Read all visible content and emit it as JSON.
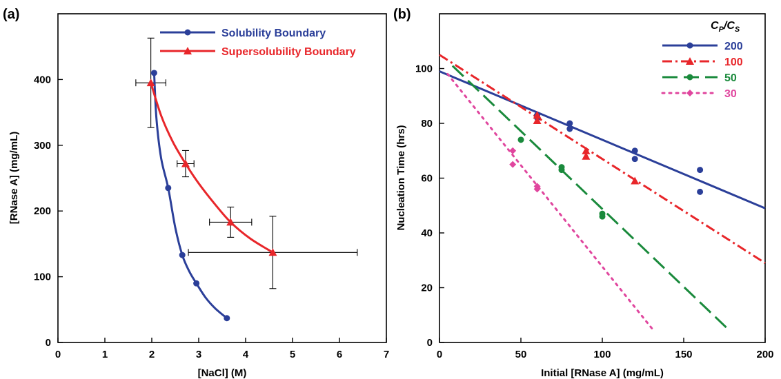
{
  "chart_data": [
    {
      "type": "scatter",
      "panel_label": "(a)",
      "xlabel": "[NaCl] (M)",
      "ylabel": "[RNase A] (mg/mL)",
      "xlim": [
        0,
        7
      ],
      "ylim": [
        0,
        500
      ],
      "xticks": [
        "0",
        "1",
        "2",
        "3",
        "4",
        "5",
        "6",
        "7"
      ],
      "yticks": [
        "0",
        "100",
        "200",
        "300",
        "400"
      ],
      "legend_position": "top-right",
      "series": [
        {
          "name": "Solubility Boundary",
          "color": "#2b3f99",
          "marker": "circle",
          "x": [
            2.05,
            2.35,
            2.65,
            2.95,
            3.6
          ],
          "y": [
            410,
            235,
            133,
            90,
            37
          ],
          "curve_x": [
            2.05,
            2.1,
            2.2,
            2.35,
            2.5,
            2.65,
            2.8,
            2.95,
            3.15,
            3.35,
            3.6
          ],
          "curve_y": [
            410,
            340,
            280,
            235,
            175,
            133,
            108,
            90,
            68,
            52,
            37
          ]
        },
        {
          "name": "Supersolubility Boundary",
          "color": "#e8262a",
          "marker": "triangle",
          "x": [
            1.98,
            2.72,
            3.68,
            4.58
          ],
          "y": [
            395,
            272,
            183,
            137
          ],
          "x_err": [
            0.32,
            0.18,
            0.45,
            1.8
          ],
          "y_err": [
            68,
            20,
            23,
            55
          ],
          "curve_x": [
            1.98,
            2.2,
            2.45,
            2.72,
            3.0,
            3.35,
            3.68,
            4.1,
            4.58
          ],
          "curve_y": [
            395,
            345,
            305,
            272,
            242,
            210,
            183,
            158,
            137
          ]
        }
      ]
    },
    {
      "type": "scatter",
      "panel_label": "(b)",
      "xlabel": "Initial [RNase A] (mg/mL)",
      "ylabel": "Nucleation Time (hrs)",
      "xlim": [
        0,
        200
      ],
      "ylim": [
        0,
        120
      ],
      "xticks": [
        "0",
        "50",
        "100",
        "150",
        "200"
      ],
      "yticks": [
        "0",
        "20",
        "40",
        "60",
        "80",
        "100"
      ],
      "legend_title": "C_P/C_S",
      "legend_title_main": "C",
      "legend_title_sub1": "P",
      "legend_title_sep": "/C",
      "legend_title_sub2": "S",
      "legend_position": "top-right",
      "series": [
        {
          "name": "200",
          "color": "#2b3f99",
          "marker": "circle",
          "line_style": "solid",
          "fit_x": [
            0,
            200
          ],
          "fit_y": [
            99,
            49
          ],
          "x": [
            60,
            60,
            80,
            80,
            120,
            120,
            160,
            160
          ],
          "y": [
            82,
            83,
            78,
            80,
            67,
            70,
            55,
            63
          ]
        },
        {
          "name": "100",
          "color": "#e8262a",
          "marker": "triangle",
          "line_style": "dashdot",
          "fit_x": [
            0,
            200
          ],
          "fit_y": [
            105,
            29
          ],
          "x": [
            60,
            60,
            90,
            90,
            120
          ],
          "y": [
            81,
            83,
            68,
            70,
            59
          ]
        },
        {
          "name": "50",
          "color": "#1a8a3c",
          "marker": "circle",
          "line_style": "longdash",
          "fit_x": [
            8,
            177
          ],
          "fit_y": [
            101,
            5
          ],
          "x": [
            50,
            75,
            75,
            100,
            100
          ],
          "y": [
            74,
            64,
            63,
            47,
            46
          ]
        },
        {
          "name": "30",
          "color": "#e0469e",
          "marker": "diamond",
          "line_style": "dotted",
          "fit_x": [
            5,
            132
          ],
          "fit_y": [
            98,
            4
          ],
          "x": [
            45,
            45,
            60,
            60
          ],
          "y": [
            70,
            65,
            57,
            56
          ]
        }
      ]
    }
  ]
}
